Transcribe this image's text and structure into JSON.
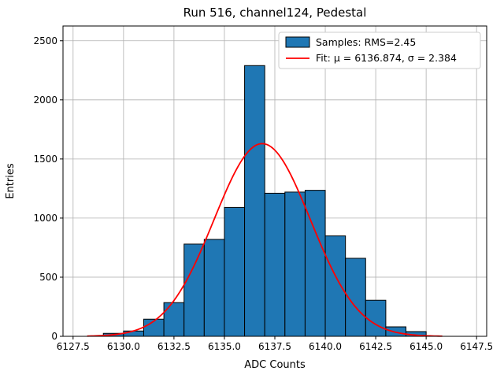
{
  "chart_data": {
    "type": "bar",
    "title": "Run 516, channel124, Pedestal",
    "xlabel": "ADC Counts",
    "ylabel": "Entries",
    "xlim": [
      6127.0,
      6148.0
    ],
    "ylim": [
      0,
      2625
    ],
    "grid": true,
    "legend_position": "upper right",
    "xticks": [
      6127.5,
      6130.0,
      6132.5,
      6135.0,
      6137.5,
      6140.0,
      6142.5,
      6145.0,
      6147.5
    ],
    "xtick_labels": [
      "6127.5",
      "6130.0",
      "6132.5",
      "6135.0",
      "6137.5",
      "6140.0",
      "6142.5",
      "6145.0",
      "6147.5"
    ],
    "yticks": [
      0,
      500,
      1000,
      1500,
      2000,
      2500
    ],
    "ytick_labels": [
      "0",
      "500",
      "1000",
      "1500",
      "2000",
      "2500"
    ],
    "histogram": {
      "label": "Samples: RMS=2.45",
      "rms": 2.45,
      "bin_start": 6129,
      "bin_width": 1,
      "values": [
        25,
        45,
        145,
        285,
        780,
        820,
        1090,
        2290,
        1210,
        1220,
        1235,
        850,
        660,
        305,
        80,
        40
      ],
      "fill_color": "#1f77b4",
      "edge_color": "#000000"
    },
    "fit": {
      "label": "Fit: μ = 6136.874, σ = 2.384",
      "mu": 6136.874,
      "sigma": 2.384,
      "amplitude": 1630,
      "color": "#ff0000",
      "x_range": [
        6128.2,
        6145.8
      ]
    },
    "legend": {
      "position": "upper right",
      "entries": [
        {
          "type": "patch",
          "label": "Samples: RMS=2.45"
        },
        {
          "type": "line",
          "label": "Fit: μ = 6136.874, σ = 2.384"
        }
      ]
    },
    "colors": {
      "grid": "#b0b0b0",
      "spine": "#000000",
      "background": "#ffffff",
      "legend_border": "#cccccc"
    }
  }
}
